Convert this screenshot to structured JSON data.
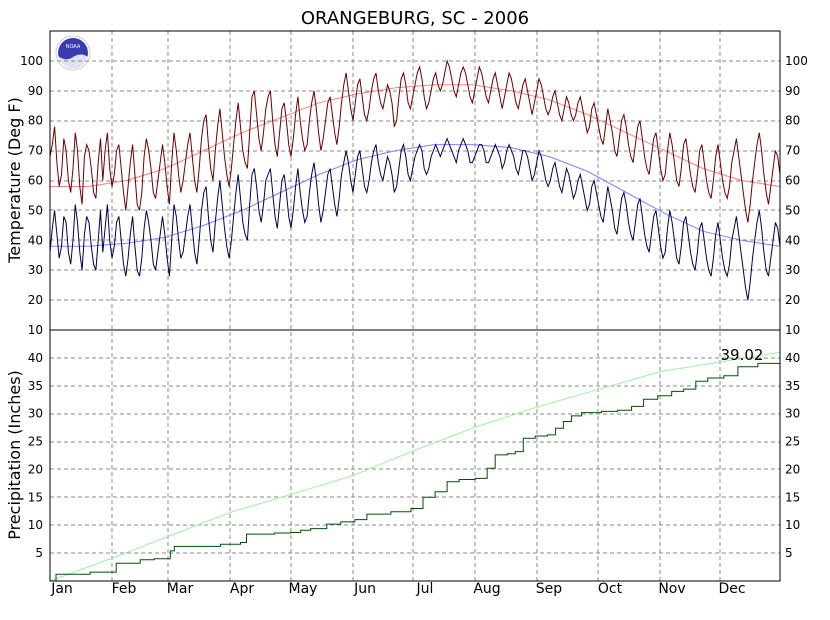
{
  "colors": {
    "max_temp": "#6b0000",
    "min_temp": "#000050",
    "normal_max": "#ff8080",
    "normal_min": "#8080ff",
    "precip": "#005000",
    "normal_precip": "#a0f0a0",
    "logo_blue": "#3a3ab0"
  },
  "logo": {
    "text": "NOAA"
  },
  "chart_data": {
    "type": "line",
    "title": "ORANGEBURG, SC - 2006",
    "months": [
      "Jan",
      "Feb",
      "Mar",
      "Apr",
      "May",
      "Jun",
      "Jul",
      "Aug",
      "Sep",
      "Oct",
      "Nov",
      "Dec"
    ],
    "temperature": {
      "ylabel": "Temperature (Deg F)",
      "ylim": [
        10,
        110
      ],
      "yticks": [
        10,
        20,
        30,
        40,
        50,
        60,
        70,
        80,
        90,
        100
      ],
      "series": [
        {
          "key": "max",
          "values": [
            68,
            72,
            78,
            66,
            58,
            62,
            74,
            70,
            60,
            56,
            64,
            76,
            70,
            58,
            52,
            68,
            72,
            70,
            64,
            56,
            54,
            66,
            74,
            60,
            70,
            76,
            64,
            58,
            62,
            70,
            72,
            64,
            56,
            50,
            58,
            66,
            72,
            62,
            52,
            50,
            56,
            68,
            74,
            70,
            64,
            56,
            54,
            60,
            66,
            72,
            66,
            58,
            52,
            66,
            76,
            70,
            62,
            56,
            60,
            66,
            72,
            76,
            68,
            60,
            56,
            64,
            74,
            80,
            82,
            72,
            64,
            60,
            70,
            78,
            84,
            76,
            68,
            62,
            58,
            64,
            72,
            80,
            86,
            78,
            70,
            66,
            64,
            76,
            88,
            90,
            82,
            74,
            70,
            76,
            84,
            88,
            90,
            80,
            72,
            68,
            76,
            84,
            86,
            80,
            72,
            68,
            74,
            82,
            88,
            80,
            74,
            70,
            72,
            80,
            86,
            90,
            84,
            76,
            70,
            74,
            80,
            86,
            88,
            82,
            76,
            72,
            78,
            86,
            92,
            96,
            90,
            84,
            80,
            86,
            92,
            94,
            88,
            82,
            80,
            84,
            90,
            94,
            96,
            90,
            86,
            84,
            88,
            92,
            90,
            86,
            78,
            80,
            88,
            94,
            96,
            92,
            86,
            84,
            88,
            92,
            96,
            98,
            94,
            88,
            84,
            86,
            90,
            94,
            96,
            92,
            90,
            92,
            96,
            100,
            98,
            94,
            90,
            88,
            92,
            96,
            98,
            96,
            92,
            88,
            86,
            90,
            94,
            98,
            96,
            92,
            88,
            86,
            90,
            94,
            96,
            92,
            88,
            84,
            88,
            92,
            96,
            94,
            90,
            86,
            84,
            88,
            92,
            94,
            90,
            86,
            82,
            86,
            90,
            94,
            92,
            88,
            84,
            82,
            84,
            88,
            90,
            86,
            82,
            80,
            84,
            88,
            86,
            82,
            80,
            82,
            86,
            88,
            84,
            80,
            76,
            78,
            84,
            86,
            82,
            78,
            74,
            72,
            78,
            84,
            80,
            76,
            70,
            68,
            74,
            80,
            82,
            78,
            72,
            68,
            66,
            72,
            78,
            80,
            74,
            68,
            64,
            62,
            68,
            74,
            76,
            70,
            64,
            60,
            62,
            70,
            76,
            72,
            66,
            60,
            58,
            64,
            72,
            74,
            68,
            62,
            58,
            56,
            62,
            70,
            72,
            66,
            60,
            56,
            54,
            60,
            68,
            72,
            66,
            60,
            56,
            54,
            58,
            66,
            70,
            74,
            68,
            62,
            56,
            50,
            46,
            52,
            60,
            66,
            72,
            76,
            70,
            62,
            56,
            52,
            58,
            64,
            70,
            68,
            62
          ]
        },
        {
          "key": "min",
          "values": [
            36,
            44,
            50,
            42,
            34,
            38,
            48,
            46,
            36,
            32,
            40,
            52,
            46,
            36,
            30,
            42,
            48,
            46,
            38,
            32,
            30,
            40,
            50,
            36,
            44,
            52,
            40,
            34,
            38,
            46,
            48,
            40,
            32,
            28,
            34,
            42,
            48,
            38,
            30,
            28,
            34,
            44,
            50,
            46,
            40,
            32,
            30,
            36,
            42,
            48,
            42,
            34,
            28,
            40,
            52,
            48,
            40,
            34,
            36,
            42,
            48,
            52,
            44,
            36,
            32,
            40,
            50,
            56,
            58,
            48,
            40,
            36,
            46,
            54,
            60,
            52,
            44,
            38,
            34,
            40,
            48,
            56,
            62,
            54,
            46,
            42,
            40,
            52,
            62,
            64,
            58,
            50,
            46,
            52,
            60,
            62,
            64,
            56,
            48,
            44,
            52,
            60,
            62,
            56,
            48,
            44,
            50,
            58,
            64,
            56,
            50,
            46,
            48,
            56,
            62,
            66,
            60,
            52,
            46,
            50,
            56,
            62,
            64,
            58,
            52,
            48,
            54,
            62,
            66,
            70,
            66,
            60,
            56,
            62,
            68,
            70,
            64,
            58,
            56,
            60,
            66,
            70,
            72,
            66,
            62,
            60,
            64,
            68,
            66,
            62,
            56,
            58,
            64,
            70,
            72,
            68,
            62,
            60,
            64,
            68,
            70,
            72,
            70,
            64,
            62,
            64,
            68,
            70,
            72,
            70,
            68,
            70,
            72,
            74,
            72,
            70,
            68,
            66,
            70,
            72,
            74,
            72,
            70,
            66,
            66,
            68,
            70,
            72,
            72,
            70,
            66,
            66,
            68,
            70,
            72,
            70,
            68,
            64,
            66,
            70,
            72,
            70,
            68,
            64,
            62,
            66,
            70,
            70,
            68,
            64,
            60,
            62,
            66,
            70,
            68,
            64,
            60,
            58,
            60,
            64,
            66,
            62,
            58,
            56,
            60,
            64,
            62,
            58,
            54,
            56,
            60,
            62,
            58,
            54,
            50,
            52,
            58,
            60,
            56,
            52,
            48,
            46,
            52,
            58,
            54,
            50,
            44,
            42,
            48,
            54,
            56,
            52,
            46,
            42,
            40,
            46,
            52,
            54,
            48,
            42,
            38,
            36,
            42,
            48,
            50,
            44,
            38,
            34,
            36,
            44,
            50,
            46,
            40,
            34,
            32,
            38,
            46,
            48,
            42,
            36,
            32,
            30,
            36,
            44,
            46,
            40,
            34,
            30,
            28,
            34,
            42,
            46,
            40,
            34,
            30,
            28,
            32,
            40,
            44,
            48,
            42,
            36,
            30,
            24,
            20,
            26,
            34,
            40,
            46,
            50,
            44,
            36,
            30,
            28,
            34,
            40,
            46,
            44,
            38
          ]
        },
        {
          "key": "normal_max",
          "values": [
            58,
            58,
            60,
            64,
            70,
            76,
            81,
            86,
            89,
            91,
            92,
            92,
            90,
            87,
            82,
            76,
            70,
            64,
            60,
            58
          ]
        },
        {
          "key": "normal_min",
          "values": [
            38,
            38,
            39,
            41,
            45,
            50,
            56,
            62,
            67,
            70,
            72,
            72,
            71,
            68,
            63,
            56,
            49,
            43,
            40,
            38
          ]
        }
      ]
    },
    "precipitation": {
      "ylabel": "Precipitation (Inches)",
      "ylim": [
        0,
        45
      ],
      "yticks": [
        5,
        10,
        15,
        20,
        25,
        30,
        35,
        40
      ],
      "total_label": "39.02",
      "series": [
        {
          "key": "observed",
          "steps": [
            [
              0,
              0.0
            ],
            [
              3,
              1.2
            ],
            [
              20,
              1.6
            ],
            [
              33,
              3.2
            ],
            [
              45,
              3.8
            ],
            [
              52,
              4.0
            ],
            [
              60,
              5.4
            ],
            [
              62,
              6.2
            ],
            [
              85,
              6.6
            ],
            [
              95,
              6.9
            ],
            [
              98,
              8.4
            ],
            [
              112,
              8.6
            ],
            [
              120,
              8.7
            ],
            [
              125,
              9.1
            ],
            [
              130,
              9.4
            ],
            [
              138,
              10.2
            ],
            [
              145,
              10.6
            ],
            [
              152,
              11.0
            ],
            [
              158,
              12.0
            ],
            [
              170,
              12.4
            ],
            [
              180,
              13.0
            ],
            [
              186,
              15.0
            ],
            [
              192,
              16.0
            ],
            [
              198,
              17.8
            ],
            [
              204,
              18.2
            ],
            [
              212,
              18.4
            ],
            [
              218,
              20.2
            ],
            [
              222,
              22.6
            ],
            [
              228,
              22.8
            ],
            [
              232,
              23.2
            ],
            [
              236,
              25.6
            ],
            [
              242,
              26.0
            ],
            [
              248,
              26.2
            ],
            [
              252,
              27.4
            ],
            [
              256,
              28.6
            ],
            [
              260,
              29.6
            ],
            [
              265,
              30.2
            ],
            [
              275,
              30.4
            ],
            [
              283,
              30.6
            ],
            [
              290,
              31.3
            ],
            [
              296,
              32.6
            ],
            [
              303,
              33.2
            ],
            [
              310,
              34.0
            ],
            [
              316,
              34.4
            ],
            [
              322,
              35.8
            ],
            [
              328,
              36.4
            ],
            [
              336,
              36.8
            ],
            [
              343,
              38.4
            ],
            [
              353,
              39.02
            ],
            [
              364,
              39.02
            ]
          ]
        },
        {
          "key": "normal",
          "values": [
            0,
            4.1,
            8.0,
            12.3,
            15.5,
            18.9,
            23.3,
            27.6,
            31.2,
            34.3,
            37.5,
            41.0
          ]
        }
      ]
    }
  }
}
